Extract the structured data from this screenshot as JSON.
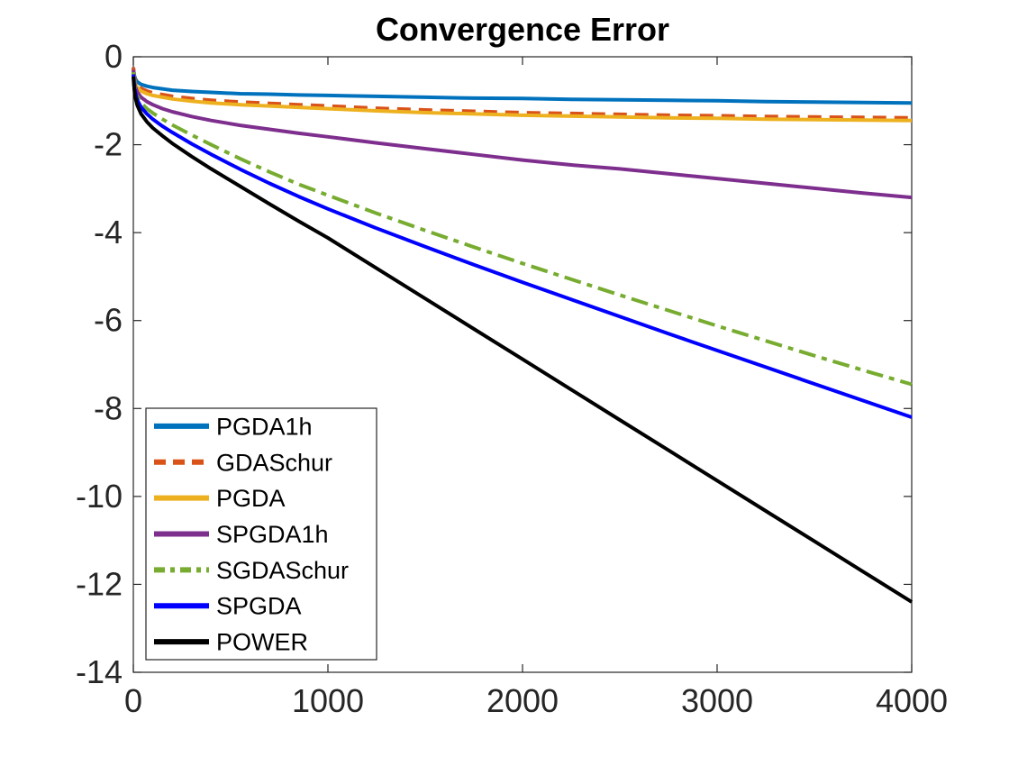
{
  "figure": {
    "title": "Convergence Error",
    "background_color": "#ffffff",
    "axes_color": "#262626",
    "title_color": "#000000"
  },
  "chart_data": {
    "type": "line",
    "title": "Convergence Error",
    "xlabel": "",
    "ylabel": "",
    "grid": false,
    "xlim": [
      0,
      4000
    ],
    "ylim": [
      -14,
      0
    ],
    "x_ticks": [
      0,
      1000,
      2000,
      3000,
      4000
    ],
    "y_ticks": [
      0,
      -2,
      -4,
      -6,
      -8,
      -10,
      -12,
      -14
    ],
    "legend_position": "bottom-left",
    "x": [
      0,
      5,
      10,
      20,
      40,
      70,
      100,
      150,
      200,
      300,
      400,
      550,
      700,
      850,
      1000,
      1250,
      1500,
      1750,
      2000,
      2250,
      2500,
      2750,
      3000,
      3250,
      3500,
      3750,
      4000
    ],
    "series": [
      {
        "name": "PGDA1h",
        "color": "#0072BD",
        "style": "solid",
        "values": [
          -0.25,
          -0.42,
          -0.5,
          -0.57,
          -0.63,
          -0.67,
          -0.7,
          -0.73,
          -0.76,
          -0.79,
          -0.81,
          -0.84,
          -0.85,
          -0.87,
          -0.88,
          -0.9,
          -0.92,
          -0.94,
          -0.95,
          -0.97,
          -0.98,
          -0.99,
          -1.0,
          -1.02,
          -1.03,
          -1.04,
          -1.05
        ]
      },
      {
        "name": "GDASchur",
        "color": "#D95319",
        "style": "dashed",
        "values": [
          -0.24,
          -0.46,
          -0.56,
          -0.64,
          -0.72,
          -0.78,
          -0.82,
          -0.86,
          -0.9,
          -0.95,
          -0.99,
          -1.03,
          -1.06,
          -1.09,
          -1.12,
          -1.17,
          -1.21,
          -1.24,
          -1.27,
          -1.29,
          -1.31,
          -1.33,
          -1.34,
          -1.36,
          -1.37,
          -1.38,
          -1.39
        ]
      },
      {
        "name": "PGDA",
        "color": "#EDB120",
        "style": "solid",
        "values": [
          -0.3,
          -0.52,
          -0.62,
          -0.7,
          -0.78,
          -0.84,
          -0.88,
          -0.92,
          -0.96,
          -1.01,
          -1.05,
          -1.09,
          -1.12,
          -1.15,
          -1.18,
          -1.23,
          -1.27,
          -1.3,
          -1.33,
          -1.35,
          -1.37,
          -1.39,
          -1.4,
          -1.42,
          -1.43,
          -1.44,
          -1.45
        ]
      },
      {
        "name": "SPGDA1h",
        "color": "#7E2F8E",
        "style": "solid",
        "values": [
          -0.3,
          -0.55,
          -0.68,
          -0.8,
          -0.92,
          -1.02,
          -1.09,
          -1.18,
          -1.25,
          -1.36,
          -1.45,
          -1.56,
          -1.65,
          -1.74,
          -1.82,
          -1.96,
          -2.09,
          -2.22,
          -2.35,
          -2.46,
          -2.55,
          -2.66,
          -2.77,
          -2.88,
          -2.99,
          -3.1,
          -3.2
        ]
      },
      {
        "name": "SGDASchur",
        "color": "#77AC30",
        "style": "dashdot",
        "values": [
          -0.35,
          -0.62,
          -0.75,
          -0.9,
          -1.05,
          -1.18,
          -1.28,
          -1.42,
          -1.55,
          -1.78,
          -2.0,
          -2.32,
          -2.62,
          -2.9,
          -3.15,
          -3.56,
          -3.95,
          -4.33,
          -4.7,
          -5.06,
          -5.42,
          -5.77,
          -6.12,
          -6.46,
          -6.8,
          -7.13,
          -7.45
        ]
      },
      {
        "name": "SPGDA",
        "color": "#0000FF",
        "style": "solid",
        "values": [
          -0.4,
          -0.68,
          -0.82,
          -0.98,
          -1.15,
          -1.3,
          -1.42,
          -1.58,
          -1.72,
          -1.98,
          -2.22,
          -2.56,
          -2.88,
          -3.18,
          -3.46,
          -3.9,
          -4.32,
          -4.73,
          -5.13,
          -5.52,
          -5.91,
          -6.3,
          -6.68,
          -7.06,
          -7.44,
          -7.82,
          -8.2
        ]
      },
      {
        "name": "POWER",
        "color": "#000000",
        "style": "solid",
        "values": [
          -0.45,
          -0.75,
          -0.92,
          -1.1,
          -1.3,
          -1.48,
          -1.62,
          -1.8,
          -1.97,
          -2.27,
          -2.55,
          -2.95,
          -3.35,
          -3.74,
          -4.12,
          -4.81,
          -5.5,
          -6.19,
          -6.88,
          -7.57,
          -8.26,
          -8.95,
          -9.64,
          -10.33,
          -11.02,
          -11.71,
          -12.4
        ]
      }
    ]
  }
}
